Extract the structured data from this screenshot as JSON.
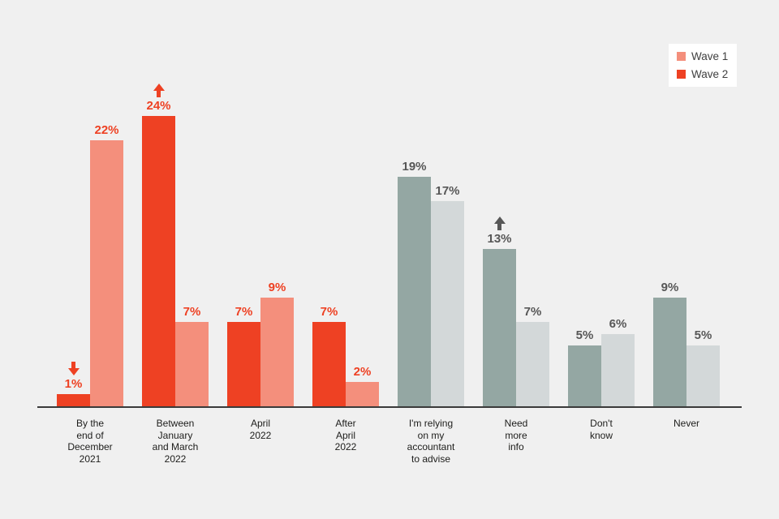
{
  "colors": {
    "background": "#f0f0f0",
    "axis_line": "#3a3a3a",
    "red_series": {
      "wave2": "#ee4123",
      "wave1": "#f48f7c"
    },
    "gray_series": {
      "wave2": "#94a7a3",
      "wave1": "#d3d8d9"
    },
    "red_label": "#ee4123",
    "gray_label": "#575757",
    "category_text": "#1d1d1b",
    "legend_bg": "#ffffff",
    "legend_text": "#3f3f3f"
  },
  "legend": {
    "items": [
      {
        "label": "Wave 1",
        "swatch": "#f48f7c"
      },
      {
        "label": "Wave 2",
        "swatch": "#ee4123"
      }
    ]
  },
  "chart_data": {
    "type": "bar",
    "title": "",
    "xlabel": "",
    "ylabel": "",
    "ylim": [
      0,
      26
    ],
    "grid": false,
    "legend_position": "top-right",
    "categories": [
      "By the end of December 2021",
      "Between January and March 2022",
      "April 2022",
      "After April 2022",
      "I'm relying on my accountant to advise",
      "Need more info",
      "Don't know",
      "Never"
    ],
    "series": [
      {
        "name": "Wave 2",
        "values": [
          1,
          24,
          7,
          7,
          19,
          13,
          5,
          9
        ]
      },
      {
        "name": "Wave 1",
        "values": [
          22,
          7,
          9,
          2,
          17,
          7,
          6,
          5
        ]
      }
    ],
    "annotations": [
      {
        "category": "By the end of December 2021",
        "series": "Wave 2",
        "arrow": "down"
      },
      {
        "category": "Between January and March 2022",
        "series": "Wave 2",
        "arrow": "up"
      },
      {
        "category": "Need more info",
        "series": "Wave 2",
        "arrow": "up"
      }
    ],
    "groups": [
      {
        "category_lines": [
          "By the",
          "end of",
          "December",
          "2021"
        ],
        "palette": "red",
        "bars": [
          {
            "series": "Wave 2",
            "value": 1,
            "label": "1%",
            "arrow": "down"
          },
          {
            "series": "Wave 1",
            "value": 22,
            "label": "22%",
            "arrow": null
          }
        ]
      },
      {
        "category_lines": [
          "Between",
          "January",
          "and March",
          "2022"
        ],
        "palette": "red",
        "bars": [
          {
            "series": "Wave 2",
            "value": 24,
            "label": "24%",
            "arrow": "up"
          },
          {
            "series": "Wave 1",
            "value": 7,
            "label": "7%",
            "arrow": null
          }
        ]
      },
      {
        "category_lines": [
          "April",
          "2022"
        ],
        "palette": "red",
        "bars": [
          {
            "series": "Wave 2",
            "value": 7,
            "label": "7%",
            "arrow": null
          },
          {
            "series": "Wave 1",
            "value": 9,
            "label": "9%",
            "arrow": null
          }
        ]
      },
      {
        "category_lines": [
          "After",
          "April",
          "2022"
        ],
        "palette": "red",
        "bars": [
          {
            "series": "Wave 2",
            "value": 7,
            "label": "7%",
            "arrow": null
          },
          {
            "series": "Wave 1",
            "value": 2,
            "label": "2%",
            "arrow": null
          }
        ]
      },
      {
        "category_lines": [
          "I'm relying",
          "on my",
          "accountant",
          "to advise"
        ],
        "palette": "gray",
        "bars": [
          {
            "series": "Wave 2",
            "value": 19,
            "label": "19%",
            "arrow": null
          },
          {
            "series": "Wave 1",
            "value": 17,
            "label": "17%",
            "arrow": null
          }
        ]
      },
      {
        "category_lines": [
          "Need",
          "more",
          "info"
        ],
        "palette": "gray",
        "bars": [
          {
            "series": "Wave 2",
            "value": 13,
            "label": "13%",
            "arrow": "up"
          },
          {
            "series": "Wave 1",
            "value": 7,
            "label": "7%",
            "arrow": null
          }
        ]
      },
      {
        "category_lines": [
          "Don't",
          "know"
        ],
        "palette": "gray",
        "bars": [
          {
            "series": "Wave 2",
            "value": 5,
            "label": "5%",
            "arrow": null
          },
          {
            "series": "Wave 1",
            "value": 6,
            "label": "6%",
            "arrow": null
          }
        ]
      },
      {
        "category_lines": [
          "Never"
        ],
        "palette": "gray",
        "bars": [
          {
            "series": "Wave 2",
            "value": 9,
            "label": "9%",
            "arrow": null
          },
          {
            "series": "Wave 1",
            "value": 5,
            "label": "5%",
            "arrow": null
          }
        ]
      }
    ]
  }
}
